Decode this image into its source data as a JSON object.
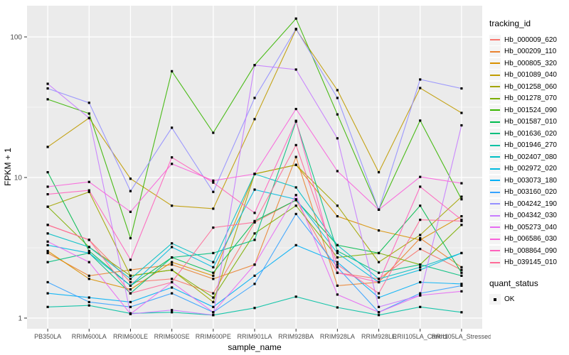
{
  "chart_data": {
    "type": "line",
    "title": "",
    "xlabel": "sample_name",
    "ylabel": "FPKM + 1",
    "y_scale": "log10",
    "ylim": [
      1,
      163
    ],
    "y_ticks": [
      1,
      10,
      100
    ],
    "y_tick_labels": [
      "1",
      "10",
      "100"
    ],
    "grid": "major-and-minor",
    "legend_position": "right",
    "legend_title": "tracking_id",
    "marker": "black-square",
    "panel_bg": "#EBEBEB",
    "grid_color": "#FFFFFF",
    "tick_label_color": "#4D4D4D",
    "categories": [
      "PB350LA",
      "RRIM600LA",
      "RRIM600LE",
      "RRIM600SE",
      "RRIM600PE",
      "RRIM901LA",
      "RRIM928BA",
      "RRIM928LA",
      "RRIM928LE",
      "RRII105LA_Control",
      "RRII105LA_Stressed"
    ],
    "series": [
      {
        "name": "Hb_000009_620",
        "color": "#F8766D",
        "values": [
          4.6,
          3.6,
          1.8,
          1.9,
          1.5,
          4.8,
          6.9,
          2.1,
          1.9,
          3.1,
          2.2
        ]
      },
      {
        "name": "Hb_000209_110",
        "color": "#EA8331",
        "values": [
          2.9,
          2.0,
          2.2,
          2.4,
          1.9,
          2.4,
          14.0,
          1.7,
          1.8,
          3.7,
          2.3
        ]
      },
      {
        "name": "Hb_000805_320",
        "color": "#D89000",
        "values": [
          3.0,
          1.9,
          1.6,
          2.5,
          2.0,
          10.6,
          12.3,
          5.3,
          4.2,
          3.6,
          5.3
        ]
      },
      {
        "name": "Hb_001089_040",
        "color": "#C09B00",
        "values": [
          16.5,
          26.5,
          9.8,
          6.3,
          6.0,
          26.0,
          113,
          41.8,
          10.9,
          43.3,
          28.8
        ]
      },
      {
        "name": "Hb_001258_060",
        "color": "#A3A500",
        "values": [
          6.2,
          7.9,
          2.0,
          2.2,
          1.3,
          10.6,
          12.3,
          6.3,
          2.5,
          3.9,
          7.3
        ]
      },
      {
        "name": "Hb_001278_070",
        "color": "#7CAE00",
        "values": [
          6.2,
          3.2,
          2.0,
          2.2,
          1.4,
          4.0,
          6.3,
          2.7,
          2.9,
          2.4,
          4.6
        ]
      },
      {
        "name": "Hb_001524_090",
        "color": "#39B600",
        "values": [
          36,
          28.5,
          3.7,
          57,
          20.8,
          63,
          135,
          28.1,
          5.9,
          25.4,
          7.0
        ]
      },
      {
        "name": "Hb_001587_010",
        "color": "#00BB4E",
        "values": [
          10.9,
          3.0,
          1.7,
          2.7,
          2.1,
          4.9,
          6.9,
          3.3,
          2.9,
          6.3,
          2.1
        ]
      },
      {
        "name": "Hb_001636_020",
        "color": "#00BF7D",
        "values": [
          2.5,
          2.9,
          1.5,
          2.7,
          2.9,
          3.6,
          25.0,
          3.0,
          2.1,
          2.4,
          2.0
        ]
      },
      {
        "name": "Hb_001946_270",
        "color": "#00C1A3",
        "values": [
          1.2,
          1.23,
          1.08,
          1.1,
          1.05,
          1.18,
          1.42,
          1.19,
          1.05,
          1.2,
          1.1
        ]
      },
      {
        "name": "Hb_002407_080",
        "color": "#00BFC4",
        "values": [
          4.0,
          3.2,
          1.9,
          3.4,
          2.5,
          10.6,
          8.5,
          3.3,
          1.9,
          2.3,
          2.9
        ]
      },
      {
        "name": "Hb_002972_020",
        "color": "#00BAE0",
        "values": [
          3.3,
          2.9,
          1.7,
          3.2,
          2.3,
          8.2,
          7.0,
          2.9,
          1.8,
          2.2,
          2.9
        ]
      },
      {
        "name": "Hb_003073_180",
        "color": "#00B0F6",
        "values": [
          1.5,
          1.4,
          1.3,
          1.65,
          1.2,
          2.0,
          3.3,
          2.5,
          1.4,
          1.8,
          1.75
        ]
      },
      {
        "name": "Hb_003160_020",
        "color": "#35A2FF",
        "values": [
          1.8,
          1.3,
          1.2,
          1.5,
          1.1,
          1.75,
          5.5,
          2.3,
          1.1,
          1.5,
          1.7
        ]
      },
      {
        "name": "Hb_004242_190",
        "color": "#9590FF",
        "values": [
          43,
          34,
          8.0,
          22.6,
          7.9,
          36.8,
          114,
          36.8,
          5.9,
          49.8,
          43
        ]
      },
      {
        "name": "Hb_004342_030",
        "color": "#C77CFF",
        "values": [
          46.4,
          26.5,
          1.07,
          1.14,
          1.05,
          63,
          58.6,
          19,
          1.2,
          1.45,
          23.5
        ]
      },
      {
        "name": "Hb_005273_040",
        "color": "#E76BF3",
        "values": [
          3.5,
          2.5,
          1.07,
          1.8,
          1.1,
          2.4,
          7.5,
          1.47,
          1.1,
          1.45,
          1.55
        ]
      },
      {
        "name": "Hb_006586_030",
        "color": "#FA62DB",
        "values": [
          8.6,
          9.3,
          5.7,
          12.5,
          9.5,
          10.6,
          30.7,
          11.1,
          5.9,
          10.1,
          9.1
        ]
      },
      {
        "name": "Hb_008864_090",
        "color": "#FF62BC",
        "values": [
          7.6,
          8.1,
          2.6,
          13.9,
          9.2,
          5.6,
          25.3,
          2.1,
          1.8,
          8.6,
          5.0
        ]
      },
      {
        "name": "Hb_039145_010",
        "color": "#FF6A98",
        "values": [
          4.6,
          3.6,
          1.5,
          1.8,
          4.4,
          4.8,
          17.0,
          2.4,
          1.5,
          5.0,
          4.9
        ]
      }
    ],
    "quant_status": {
      "title": "quant_status",
      "items": [
        "OK"
      ]
    }
  }
}
